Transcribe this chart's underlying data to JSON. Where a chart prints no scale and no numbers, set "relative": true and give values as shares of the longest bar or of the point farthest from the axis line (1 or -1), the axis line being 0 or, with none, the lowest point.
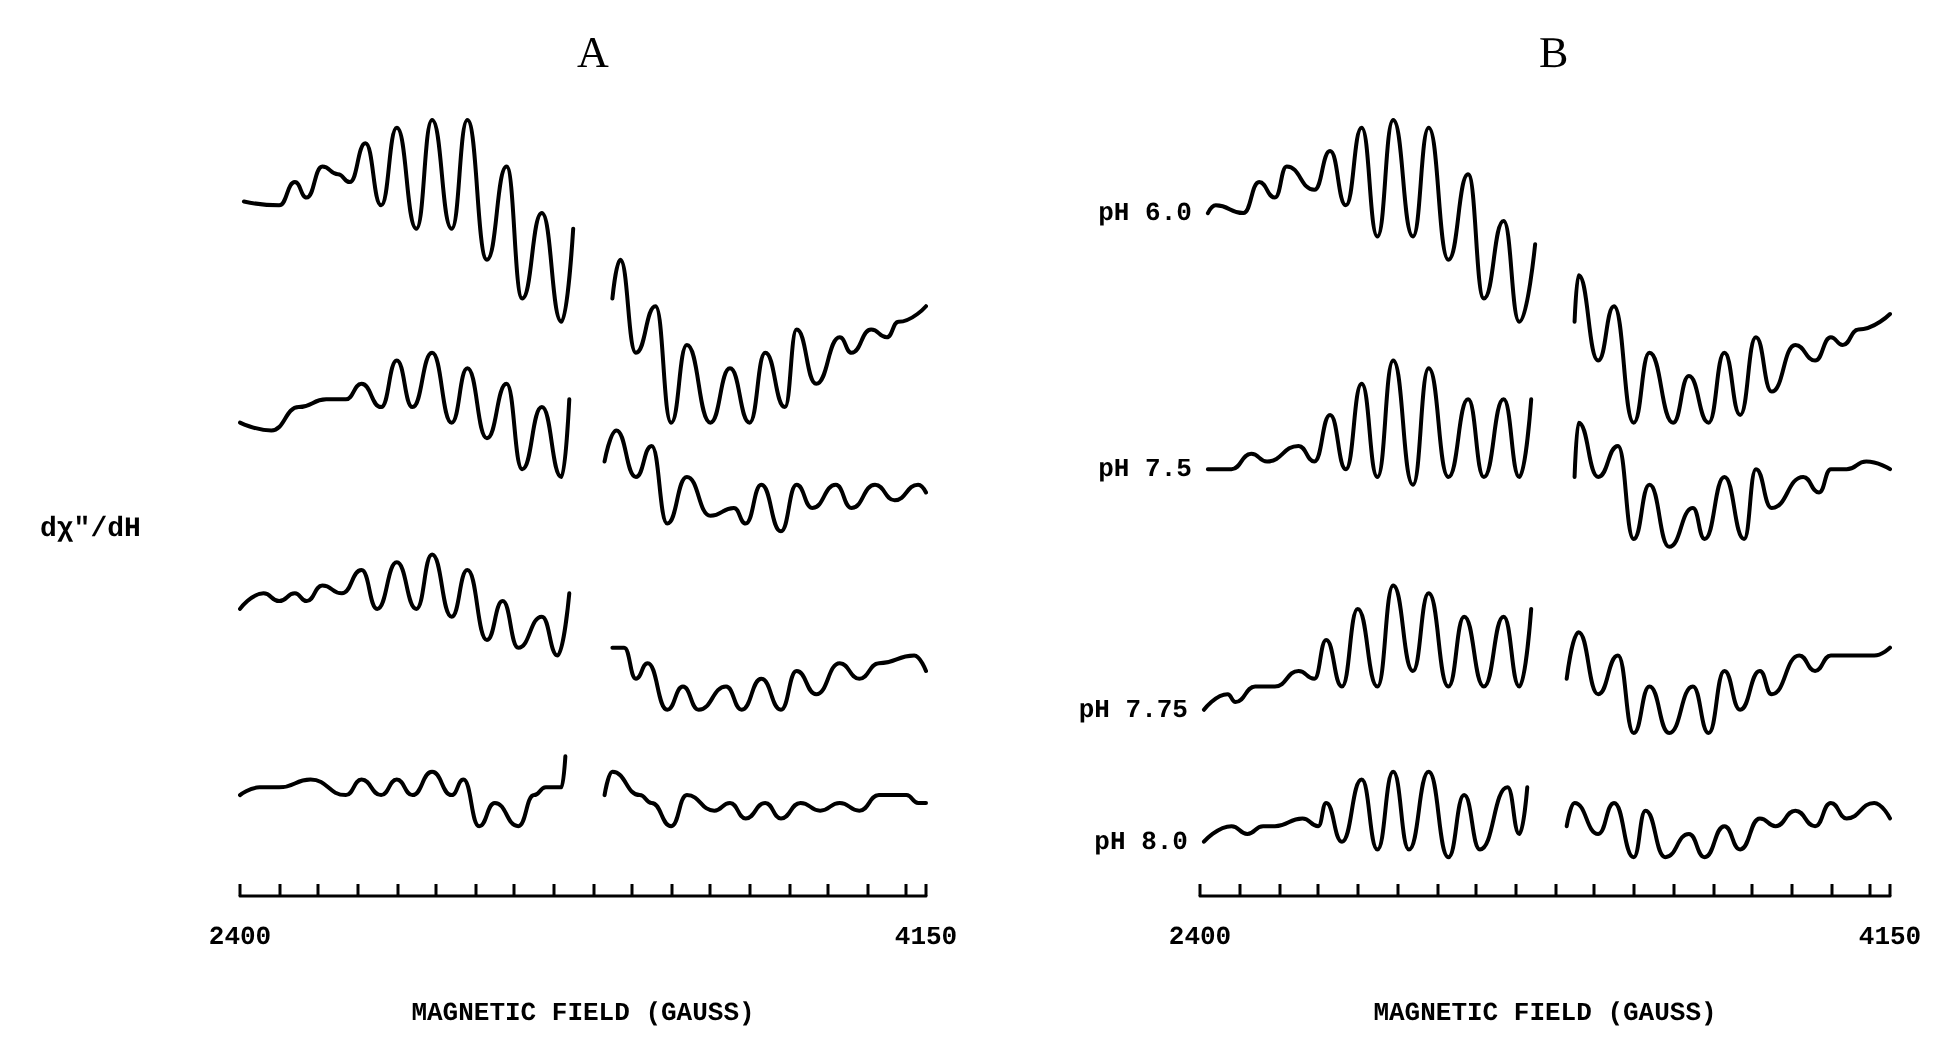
{
  "chart_data": [
    {
      "type": "line",
      "title": "A",
      "xlabel": "MAGNETIC FIELD (GAUSS)",
      "ylabel": "dχ″/dH",
      "relative": true,
      "xlim": [
        2400,
        4150
      ],
      "xticks": [
        {
          "value": 2400,
          "label": "2400"
        },
        {
          "value": 2500,
          "label": null
        },
        {
          "value": 2600,
          "label": null
        },
        {
          "value": 2700,
          "label": null
        },
        {
          "value": 2800,
          "label": null
        },
        {
          "value": 2900,
          "label": null
        },
        {
          "value": 3000,
          "label": null
        },
        {
          "value": 3100,
          "label": null
        },
        {
          "value": 3200,
          "label": null
        },
        {
          "value": 3300,
          "label": null
        },
        {
          "value": 3400,
          "label": null
        },
        {
          "value": 3500,
          "label": null
        },
        {
          "value": 3600,
          "label": null
        },
        {
          "value": 3700,
          "label": null
        },
        {
          "value": 3800,
          "label": null
        },
        {
          "value": 3900,
          "label": null
        },
        {
          "value": 4000,
          "label": null
        },
        {
          "value": 4100,
          "label": null
        },
        {
          "value": 4150,
          "label": "4150"
        }
      ],
      "series": [
        {
          "color": "#000000",
          "x": [
            2410,
            2500,
            2540,
            2570,
            2610,
            2650,
            2680,
            2720,
            2760,
            2800,
            2850,
            2890,
            2940,
            2980,
            3030,
            3080,
            3120,
            3170,
            3220,
            3250,
            3290,
            3350,
            3370,
            3410,
            3460,
            3500,
            3540,
            3600,
            3650,
            3700,
            3740,
            3790,
            3820,
            3870,
            3930,
            3960,
            4010,
            4050,
            4080,
            4150
          ],
          "values": [
            0.895,
            0.89,
            0.92,
            0.9,
            0.94,
            0.93,
            0.92,
            0.97,
            0.89,
            0.99,
            0.86,
            1.0,
            0.86,
            1.0,
            0.82,
            0.94,
            0.77,
            0.88,
            0.74,
            0.86,
            null,
            0.77,
            0.82,
            0.7,
            0.76,
            0.61,
            0.71,
            0.61,
            0.68,
            0.61,
            0.7,
            0.63,
            0.73,
            0.66,
            0.72,
            0.7,
            0.73,
            0.72,
            0.74,
            0.76
          ]
        },
        {
          "color": "#000000",
          "x": [
            2400,
            2480,
            2550,
            2620,
            2670,
            2710,
            2760,
            2800,
            2840,
            2890,
            2940,
            2980,
            3030,
            3080,
            3120,
            3170,
            3220,
            3240,
            3290,
            3330,
            3360,
            3410,
            3450,
            3490,
            3540,
            3600,
            3660,
            3690,
            3730,
            3780,
            3820,
            3860,
            3920,
            3960,
            4020,
            4070,
            4130,
            4150
          ],
          "values": [
            0.61,
            0.6,
            0.63,
            0.64,
            0.64,
            0.66,
            0.63,
            0.69,
            0.63,
            0.7,
            0.61,
            0.68,
            0.59,
            0.66,
            0.55,
            0.63,
            0.54,
            0.64,
            null,
            0.56,
            0.6,
            0.54,
            0.58,
            0.48,
            0.54,
            0.49,
            0.5,
            0.48,
            0.53,
            0.47,
            0.53,
            0.5,
            0.53,
            0.5,
            0.53,
            0.51,
            0.53,
            0.52
          ]
        },
        {
          "color": "#000000",
          "x": [
            2400,
            2460,
            2500,
            2540,
            2570,
            2610,
            2660,
            2710,
            2750,
            2800,
            2850,
            2890,
            2940,
            2980,
            3030,
            3070,
            3110,
            3170,
            3210,
            3240,
            3290,
            3350,
            3380,
            3410,
            3440,
            3490,
            3530,
            3570,
            3640,
            3680,
            3730,
            3780,
            3820,
            3870,
            3930,
            3980,
            4030,
            4120,
            4150
          ],
          "values": [
            0.37,
            0.39,
            0.38,
            0.39,
            0.38,
            0.4,
            0.39,
            0.42,
            0.37,
            0.43,
            0.37,
            0.44,
            0.36,
            0.42,
            0.33,
            0.38,
            0.32,
            0.36,
            0.31,
            0.39,
            null,
            0.32,
            0.32,
            0.28,
            0.3,
            0.24,
            0.27,
            0.24,
            0.27,
            0.24,
            0.28,
            0.24,
            0.29,
            0.26,
            0.3,
            0.28,
            0.3,
            0.31,
            0.29
          ]
        },
        {
          "color": "#000000",
          "x": [
            2400,
            2450,
            2500,
            2580,
            2670,
            2710,
            2760,
            2800,
            2840,
            2890,
            2940,
            2970,
            3010,
            3050,
            3110,
            3150,
            3180,
            3220,
            3230,
            3290,
            3330,
            3350,
            3420,
            3450,
            3500,
            3540,
            3610,
            3650,
            3690,
            3740,
            3780,
            3830,
            3880,
            3930,
            3980,
            4030,
            4100,
            4130,
            4150
          ],
          "values": [
            0.13,
            0.14,
            0.14,
            0.15,
            0.13,
            0.15,
            0.13,
            0.15,
            0.13,
            0.16,
            0.13,
            0.15,
            0.09,
            0.12,
            0.09,
            0.13,
            0.14,
            0.14,
            0.18,
            null,
            0.13,
            0.16,
            0.13,
            0.12,
            0.09,
            0.13,
            0.11,
            0.12,
            0.1,
            0.12,
            0.1,
            0.12,
            0.11,
            0.12,
            0.11,
            0.13,
            0.13,
            0.12,
            0.12
          ]
        }
      ]
    },
    {
      "type": "line",
      "title": "B",
      "xlabel": "MAGNETIC FIELD (GAUSS)",
      "relative": true,
      "xlim": [
        2400,
        4150
      ],
      "xticks": [
        {
          "value": 2400,
          "label": "2400"
        },
        {
          "value": 2500,
          "label": null
        },
        {
          "value": 2600,
          "label": null
        },
        {
          "value": 2700,
          "label": null
        },
        {
          "value": 2800,
          "label": null
        },
        {
          "value": 2900,
          "label": null
        },
        {
          "value": 3000,
          "label": null
        },
        {
          "value": 3100,
          "label": null
        },
        {
          "value": 3200,
          "label": null
        },
        {
          "value": 3300,
          "label": null
        },
        {
          "value": 3400,
          "label": null
        },
        {
          "value": 3500,
          "label": null
        },
        {
          "value": 3600,
          "label": null
        },
        {
          "value": 3700,
          "label": null
        },
        {
          "value": 3800,
          "label": null
        },
        {
          "value": 3900,
          "label": null
        },
        {
          "value": 4000,
          "label": null
        },
        {
          "value": 4100,
          "label": null
        },
        {
          "value": 4150,
          "label": "4150"
        }
      ],
      "series": [
        {
          "name": "pH 6.0",
          "color": "#000000",
          "x": [
            2420,
            2440,
            2510,
            2550,
            2590,
            2620,
            2690,
            2730,
            2770,
            2810,
            2850,
            2890,
            2940,
            2980,
            3030,
            3080,
            3120,
            3170,
            3210,
            3250,
            3290,
            3350,
            3360,
            3410,
            3450,
            3500,
            3540,
            3600,
            3640,
            3690,
            3730,
            3770,
            3810,
            3850,
            3910,
            3960,
            4000,
            4030,
            4070,
            4150
          ],
          "values": [
            0.88,
            0.89,
            0.88,
            0.92,
            0.9,
            0.94,
            0.91,
            0.96,
            0.89,
            0.99,
            0.85,
            1.0,
            0.85,
            0.99,
            0.82,
            0.93,
            0.77,
            0.87,
            0.74,
            0.84,
            null,
            0.74,
            0.8,
            0.69,
            0.76,
            0.61,
            0.7,
            0.61,
            0.67,
            0.61,
            0.7,
            0.62,
            0.72,
            0.65,
            0.71,
            0.69,
            0.72,
            0.71,
            0.73,
            0.75
          ]
        },
        {
          "name": "pH 7.5",
          "color": "#000000",
          "x": [
            2420,
            2480,
            2530,
            2570,
            2650,
            2690,
            2730,
            2770,
            2810,
            2850,
            2890,
            2940,
            2980,
            3030,
            3080,
            3120,
            3170,
            3210,
            3240,
            3290,
            3350,
            3360,
            3410,
            3460,
            3500,
            3540,
            3590,
            3650,
            3680,
            3730,
            3780,
            3810,
            3850,
            3930,
            3970,
            4000,
            4040,
            4090,
            4150
          ],
          "values": [
            0.55,
            0.55,
            0.57,
            0.56,
            0.58,
            0.56,
            0.62,
            0.55,
            0.66,
            0.54,
            0.69,
            0.53,
            0.68,
            0.54,
            0.64,
            0.54,
            0.64,
            0.54,
            0.64,
            null,
            0.54,
            0.61,
            0.54,
            0.58,
            0.46,
            0.53,
            0.45,
            0.5,
            0.46,
            0.54,
            0.46,
            0.55,
            0.5,
            0.54,
            0.52,
            0.55,
            0.55,
            0.56,
            0.55
          ]
        },
        {
          "name": "pH 7.75",
          "color": "#000000",
          "x": [
            2410,
            2470,
            2490,
            2540,
            2590,
            2650,
            2690,
            2720,
            2760,
            2800,
            2850,
            2890,
            2940,
            2980,
            3030,
            3070,
            3120,
            3170,
            3210,
            3240,
            3290,
            3330,
            3360,
            3410,
            3460,
            3500,
            3540,
            3590,
            3650,
            3690,
            3730,
            3770,
            3820,
            3850,
            3920,
            3960,
            4000,
            4040,
            4110,
            4150
          ],
          "values": [
            0.24,
            0.26,
            0.25,
            0.27,
            0.27,
            0.29,
            0.28,
            0.33,
            0.27,
            0.37,
            0.27,
            0.4,
            0.29,
            0.39,
            0.27,
            0.36,
            0.27,
            0.36,
            0.27,
            0.37,
            null,
            0.28,
            0.34,
            0.26,
            0.31,
            0.21,
            0.27,
            0.21,
            0.27,
            0.21,
            0.29,
            0.24,
            0.29,
            0.26,
            0.31,
            0.29,
            0.31,
            0.31,
            0.31,
            0.32
          ]
        },
        {
          "name": "pH 8.0",
          "color": "#000000",
          "x": [
            2410,
            2480,
            2520,
            2560,
            2590,
            2660,
            2700,
            2720,
            2760,
            2810,
            2850,
            2890,
            2930,
            2980,
            3030,
            3070,
            3110,
            3180,
            3210,
            3230,
            3290,
            3330,
            3350,
            3410,
            3450,
            3500,
            3530,
            3580,
            3640,
            3680,
            3730,
            3770,
            3820,
            3860,
            3910,
            3960,
            4000,
            4040,
            4110,
            4150
          ],
          "values": [
            0.07,
            0.09,
            0.08,
            0.09,
            0.09,
            0.1,
            0.09,
            0.12,
            0.07,
            0.15,
            0.06,
            0.16,
            0.06,
            0.16,
            0.05,
            0.13,
            0.06,
            0.14,
            0.08,
            0.14,
            null,
            0.09,
            0.12,
            0.08,
            0.12,
            0.05,
            0.11,
            0.05,
            0.08,
            0.05,
            0.09,
            0.06,
            0.1,
            0.09,
            0.11,
            0.09,
            0.12,
            0.1,
            0.12,
            0.1
          ]
        }
      ]
    }
  ]
}
